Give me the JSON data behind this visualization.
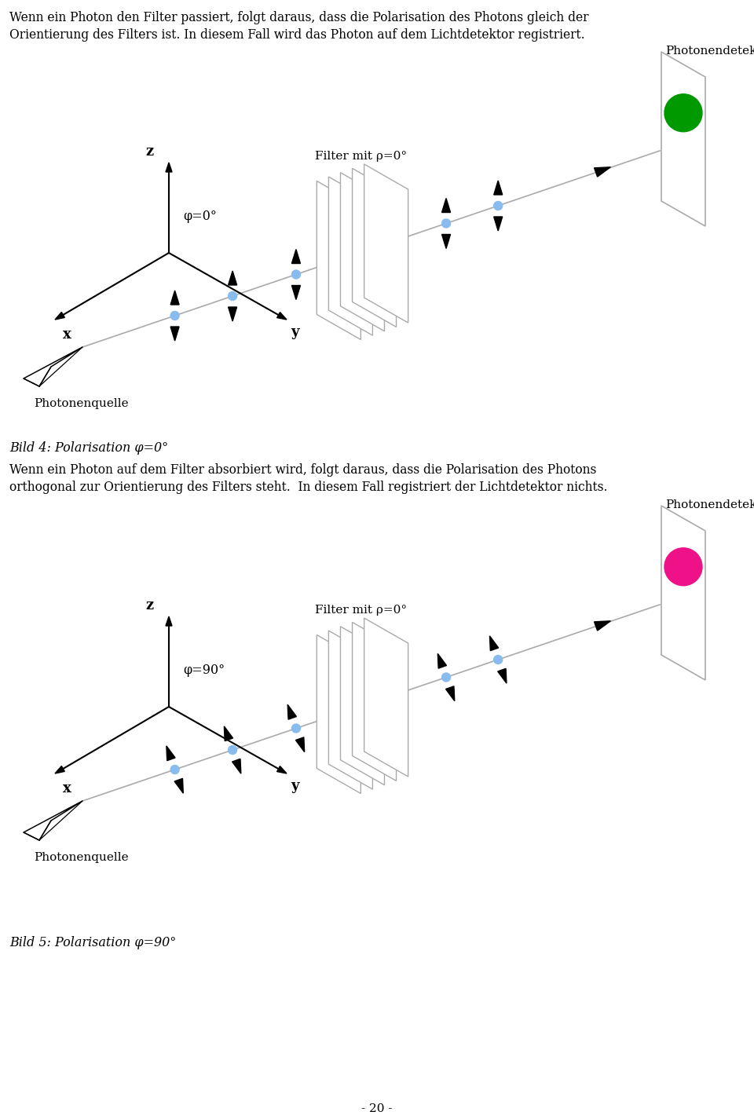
{
  "text_top1": "Wenn ein Photon den Filter passiert, folgt daraus, dass die Polarisation des Photons gleich der",
  "text_top2": "Orientierung des Filters ist. In diesem Fall wird das Photon auf dem Lichtdetektor registriert.",
  "text_mid1": "Wenn ein Photon auf dem Filter absorbiert wird, folgt daraus, dass die Polarisation des Photons",
  "text_mid2": "orthogonal zur Orientierung des Filters steht.  In diesem Fall registriert der Lichtdetektor nichts.",
  "caption1": "Bild 4: Polarisation φ=0°",
  "caption2": "Bild 5: Polarisation φ=90°",
  "page_number": "- 20 -",
  "label_photondetektor": "Photonendetektor",
  "label_photonenquelle": "Photonenquelle",
  "label_filter": "Filter mit ρ=0°",
  "label_phi1": "φ=0°",
  "label_phi2": "φ=90°",
  "label_z": "z",
  "label_x": "x",
  "label_y": "y",
  "green_color": "#009900",
  "red_color": "#ee1188",
  "line_color": "#aaaaaa",
  "arrow_color": "#000000",
  "photon_dot_color": "#88bbee",
  "bg_color": "#ffffff"
}
